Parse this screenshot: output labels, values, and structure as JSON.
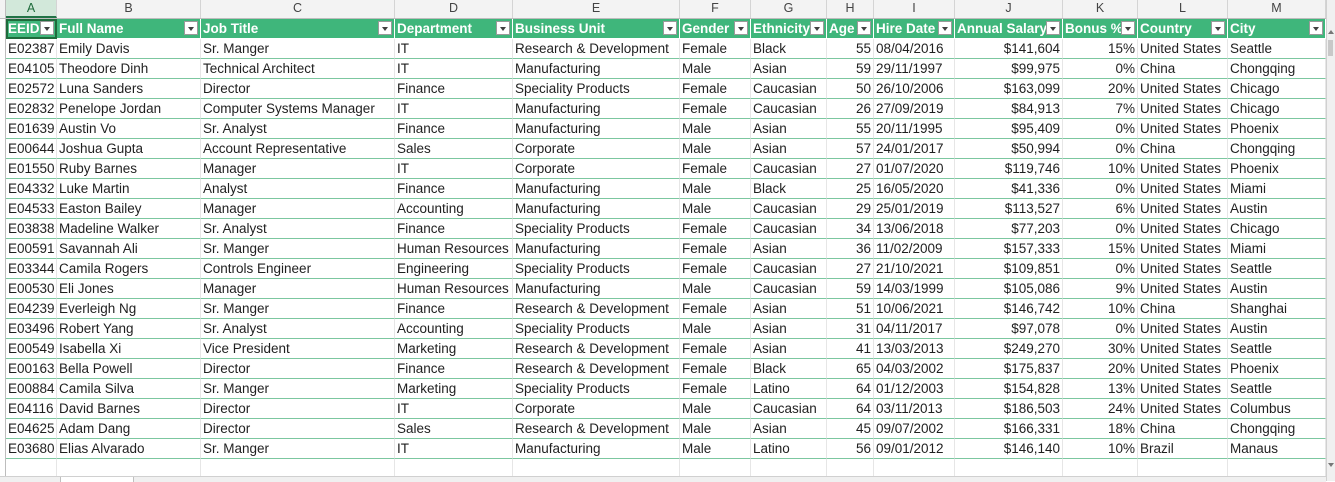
{
  "columns": [
    "A",
    "B",
    "C",
    "D",
    "E",
    "F",
    "G",
    "H",
    "I",
    "J",
    "K",
    "L",
    "M"
  ],
  "headers": [
    "EEID",
    "Full Name",
    "Job Title",
    "Department",
    "Business Unit",
    "Gender",
    "Ethnicity",
    "Age",
    "Hire Date",
    "Annual Salary",
    "Bonus %",
    "Country",
    "City"
  ],
  "rows": [
    [
      "E02387",
      "Emily Davis",
      "Sr. Manger",
      "IT",
      "Research & Development",
      "Female",
      "Black",
      "55",
      "08/04/2016",
      "$141,604",
      "15%",
      "United States",
      "Seattle"
    ],
    [
      "E04105",
      "Theodore Dinh",
      "Technical Architect",
      "IT",
      "Manufacturing",
      "Male",
      "Asian",
      "59",
      "29/11/1997",
      "$99,975",
      "0%",
      "China",
      "Chongqing"
    ],
    [
      "E02572",
      "Luna Sanders",
      "Director",
      "Finance",
      "Speciality Products",
      "Female",
      "Caucasian",
      "50",
      "26/10/2006",
      "$163,099",
      "20%",
      "United States",
      "Chicago"
    ],
    [
      "E02832",
      "Penelope Jordan",
      "Computer Systems Manager",
      "IT",
      "Manufacturing",
      "Female",
      "Caucasian",
      "26",
      "27/09/2019",
      "$84,913",
      "7%",
      "United States",
      "Chicago"
    ],
    [
      "E01639",
      "Austin Vo",
      "Sr. Analyst",
      "Finance",
      "Manufacturing",
      "Male",
      "Asian",
      "55",
      "20/11/1995",
      "$95,409",
      "0%",
      "United States",
      "Phoenix"
    ],
    [
      "E00644",
      "Joshua Gupta",
      "Account Representative",
      "Sales",
      "Corporate",
      "Male",
      "Asian",
      "57",
      "24/01/2017",
      "$50,994",
      "0%",
      "China",
      "Chongqing"
    ],
    [
      "E01550",
      "Ruby Barnes",
      "Manager",
      "IT",
      "Corporate",
      "Female",
      "Caucasian",
      "27",
      "01/07/2020",
      "$119,746",
      "10%",
      "United States",
      "Phoenix"
    ],
    [
      "E04332",
      "Luke Martin",
      "Analyst",
      "Finance",
      "Manufacturing",
      "Male",
      "Black",
      "25",
      "16/05/2020",
      "$41,336",
      "0%",
      "United States",
      "Miami"
    ],
    [
      "E04533",
      "Easton Bailey",
      "Manager",
      "Accounting",
      "Manufacturing",
      "Male",
      "Caucasian",
      "29",
      "25/01/2019",
      "$113,527",
      "6%",
      "United States",
      "Austin"
    ],
    [
      "E03838",
      "Madeline Walker",
      "Sr. Analyst",
      "Finance",
      "Speciality Products",
      "Female",
      "Caucasian",
      "34",
      "13/06/2018",
      "$77,203",
      "0%",
      "United States",
      "Chicago"
    ],
    [
      "E00591",
      "Savannah Ali",
      "Sr. Manger",
      "Human Resources",
      "Manufacturing",
      "Female",
      "Asian",
      "36",
      "11/02/2009",
      "$157,333",
      "15%",
      "United States",
      "Miami"
    ],
    [
      "E03344",
      "Camila Rogers",
      "Controls Engineer",
      "Engineering",
      "Speciality Products",
      "Female",
      "Caucasian",
      "27",
      "21/10/2021",
      "$109,851",
      "0%",
      "United States",
      "Seattle"
    ],
    [
      "E00530",
      "Eli Jones",
      "Manager",
      "Human Resources",
      "Manufacturing",
      "Male",
      "Caucasian",
      "59",
      "14/03/1999",
      "$105,086",
      "9%",
      "United States",
      "Austin"
    ],
    [
      "E04239",
      "Everleigh Ng",
      "Sr. Manger",
      "Finance",
      "Research & Development",
      "Female",
      "Asian",
      "51",
      "10/06/2021",
      "$146,742",
      "10%",
      "China",
      "Shanghai"
    ],
    [
      "E03496",
      "Robert Yang",
      "Sr. Analyst",
      "Accounting",
      "Speciality Products",
      "Male",
      "Asian",
      "31",
      "04/11/2017",
      "$97,078",
      "0%",
      "United States",
      "Austin"
    ],
    [
      "E00549",
      "Isabella Xi",
      "Vice President",
      "Marketing",
      "Research & Development",
      "Female",
      "Asian",
      "41",
      "13/03/2013",
      "$249,270",
      "30%",
      "United States",
      "Seattle"
    ],
    [
      "E00163",
      "Bella Powell",
      "Director",
      "Finance",
      "Research & Development",
      "Female",
      "Black",
      "65",
      "04/03/2002",
      "$175,837",
      "20%",
      "United States",
      "Phoenix"
    ],
    [
      "E00884",
      "Camila Silva",
      "Sr. Manger",
      "Marketing",
      "Speciality Products",
      "Female",
      "Latino",
      "64",
      "01/12/2003",
      "$154,828",
      "13%",
      "United States",
      "Seattle"
    ],
    [
      "E04116",
      "David Barnes",
      "Director",
      "IT",
      "Corporate",
      "Male",
      "Caucasian",
      "64",
      "03/11/2013",
      "$186,503",
      "24%",
      "United States",
      "Columbus"
    ],
    [
      "E04625",
      "Adam Dang",
      "Director",
      "Sales",
      "Research & Development",
      "Male",
      "Asian",
      "45",
      "09/07/2002",
      "$166,331",
      "18%",
      "China",
      "Chongqing"
    ],
    [
      "E03680",
      "Elias Alvarado",
      "Sr. Manger",
      "IT",
      "Manufacturing",
      "Male",
      "Latino",
      "56",
      "09/01/2012",
      "$146,140",
      "10%",
      "Brazil",
      "Manaus"
    ]
  ],
  "colors": {
    "header_fill": "#3fb67b",
    "header_text": "#ffffff",
    "row_border": "#7cc7a0",
    "selected_column_header": "#d2e8da"
  },
  "icons": {
    "filter_button": "filter-dropdown-icon"
  }
}
